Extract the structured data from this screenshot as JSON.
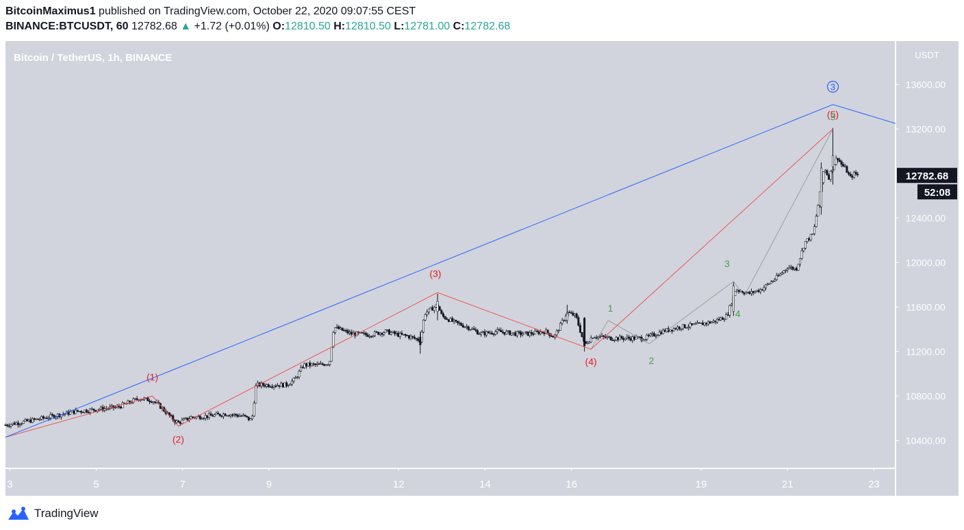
{
  "header": {
    "author": "BitcoinMaximus1",
    "published": "published on TradingView.com, October 22, 2020 09:07:55 CEST",
    "symbol": "BINANCE:BTCUSDT, 60",
    "last": "12782.68",
    "change_arrow": "▲",
    "change": "+1.72 (+0.01%)",
    "o_label": "O:",
    "o": "12810.50",
    "h_label": "H:",
    "h": "12810.50",
    "l_label": "L:",
    "l": "12781.00",
    "c_label": "C:",
    "c": "12782.68"
  },
  "chart_data": {
    "type": "candlestick",
    "title": "Bitcoin / TetherUS, 1h, BINANCE",
    "currency_label": "USDT",
    "ylim": [
      10150,
      13990
    ],
    "y_ticks": [
      10400,
      10800,
      11200,
      11600,
      12000,
      12400,
      13200,
      13600
    ],
    "y_tick_labels": [
      "10400.00",
      "10800.00",
      "11200.00",
      "11600.00",
      "12000.00",
      "12400.00",
      "13200.00",
      "13600.00"
    ],
    "xlim": [
      2.9,
      23.5
    ],
    "x_ticks": [
      3,
      5,
      7,
      9,
      12,
      14,
      16,
      19,
      21,
      23
    ],
    "x_tick_labels": [
      "3",
      "5",
      "7",
      "9",
      "12",
      "14",
      "16",
      "19",
      "21",
      "23"
    ],
    "x_tick_positions": [
      3,
      5,
      7,
      9,
      12,
      14,
      16,
      19,
      21,
      23
    ],
    "last_price_label": "12782.68",
    "countdown_label": "52:08",
    "price_path": [
      [
        2.9,
        10540
      ],
      [
        3.5,
        10580
      ],
      [
        4.0,
        10620
      ],
      [
        4.5,
        10660
      ],
      [
        5.0,
        10680
      ],
      [
        5.5,
        10700
      ],
      [
        6.0,
        10780
      ],
      [
        6.3,
        10760
      ],
      [
        6.5,
        10700
      ],
      [
        6.8,
        10580
      ],
      [
        6.9,
        10560
      ],
      [
        7.2,
        10610
      ],
      [
        7.6,
        10620
      ],
      [
        8.0,
        10640
      ],
      [
        8.4,
        10620
      ],
      [
        8.6,
        10580
      ],
      [
        8.7,
        10900
      ],
      [
        9.0,
        10900
      ],
      [
        9.4,
        10900
      ],
      [
        9.6,
        10950
      ],
      [
        9.8,
        11080
      ],
      [
        10.2,
        11080
      ],
      [
        10.4,
        11100
      ],
      [
        10.5,
        11420
      ],
      [
        10.9,
        11360
      ],
      [
        11.3,
        11350
      ],
      [
        11.7,
        11380
      ],
      [
        12.0,
        11350
      ],
      [
        12.2,
        11340
      ],
      [
        12.5,
        11300
      ],
      [
        12.6,
        11540
      ],
      [
        12.9,
        11620
      ],
      [
        13.0,
        11520
      ],
      [
        13.3,
        11460
      ],
      [
        13.6,
        11420
      ],
      [
        13.9,
        11360
      ],
      [
        14.3,
        11380
      ],
      [
        14.7,
        11360
      ],
      [
        15.0,
        11360
      ],
      [
        15.4,
        11380
      ],
      [
        15.6,
        11330
      ],
      [
        15.9,
        11550
      ],
      [
        16.1,
        11520
      ],
      [
        16.3,
        11260
      ],
      [
        16.5,
        11340
      ],
      [
        16.9,
        11320
      ],
      [
        17.3,
        11320
      ],
      [
        17.7,
        11320
      ],
      [
        18.1,
        11380
      ],
      [
        18.5,
        11420
      ],
      [
        18.9,
        11440
      ],
      [
        19.3,
        11470
      ],
      [
        19.6,
        11520
      ],
      [
        19.8,
        11760
      ],
      [
        20.1,
        11720
      ],
      [
        20.4,
        11760
      ],
      [
        20.8,
        11880
      ],
      [
        21.0,
        11960
      ],
      [
        21.2,
        11940
      ],
      [
        21.4,
        12180
      ],
      [
        21.6,
        12260
      ],
      [
        21.7,
        12500
      ],
      [
        21.85,
        12860
      ],
      [
        21.95,
        12760
      ],
      [
        22.05,
        12860
      ],
      [
        22.15,
        12950
      ],
      [
        22.25,
        12880
      ],
      [
        22.35,
        12840
      ],
      [
        22.45,
        12760
      ],
      [
        22.55,
        12800
      ],
      [
        22.65,
        12782.68
      ]
    ],
    "spike_candles": [
      {
        "x": 22.05,
        "o": 12860,
        "h": 13210,
        "l": 12700,
        "c": 12960
      },
      {
        "x": 21.78,
        "o": 12500,
        "h": 12900,
        "l": 12430,
        "c": 12850
      },
      {
        "x": 19.75,
        "o": 11560,
        "h": 11830,
        "l": 11520,
        "c": 11790
      },
      {
        "x": 16.3,
        "o": 11500,
        "h": 11510,
        "l": 11200,
        "c": 11250
      },
      {
        "x": 12.9,
        "o": 11560,
        "h": 11720,
        "l": 11480,
        "c": 11650
      },
      {
        "x": 12.5,
        "o": 11330,
        "h": 11380,
        "l": 11180,
        "c": 11260
      },
      {
        "x": 15.9,
        "o": 11480,
        "h": 11620,
        "l": 11450,
        "c": 11540
      }
    ],
    "wave_major": {
      "points": [
        [
          2.9,
          10430
        ],
        [
          22.05,
          13420
        ],
        [
          23.5,
          13250
        ]
      ],
      "label": "3",
      "label_point": [
        22.05,
        13580
      ]
    },
    "wave_intermediate": {
      "points": [
        [
          2.9,
          10430
        ],
        [
          6.3,
          10800
        ],
        [
          6.9,
          10530
        ],
        [
          12.9,
          11730
        ],
        [
          16.45,
          11220
        ],
        [
          22.05,
          13200
        ]
      ],
      "labels": [
        {
          "text": "(1)",
          "x": 6.3,
          "y": 10940
        },
        {
          "text": "(2)",
          "x": 6.9,
          "y": 10380
        },
        {
          "text": "(3)",
          "x": 12.85,
          "y": 11870
        },
        {
          "text": "(4)",
          "x": 16.45,
          "y": 11080
        },
        {
          "text": "(5)",
          "x": 22.05,
          "y": 13300
        }
      ]
    },
    "wave_minor": {
      "points": [
        [
          16.45,
          11220
        ],
        [
          16.85,
          11480
        ],
        [
          17.8,
          11270
        ],
        [
          19.75,
          11830
        ],
        [
          20.0,
          11700
        ],
        [
          22.05,
          13200
        ]
      ],
      "labels": [
        {
          "text": "1",
          "x": 16.9,
          "y": 11560
        },
        {
          "text": "2",
          "x": 17.85,
          "y": 11090
        },
        {
          "text": "3",
          "x": 19.6,
          "y": 11960
        },
        {
          "text": "4",
          "x": 19.85,
          "y": 11510
        },
        {
          "text": "5",
          "x": 22.05,
          "y": 13280
        }
      ]
    },
    "colors": {
      "background": "#d1d4dc",
      "major": "#2962ff",
      "intermediate": "#ef5350",
      "minor_line": "#9e9e9e",
      "minor_label": "#43a047",
      "intermediate_label": "#e51c23"
    }
  },
  "footer": {
    "brand": "TradingView",
    "icon": "tradingview-logo-icon"
  }
}
